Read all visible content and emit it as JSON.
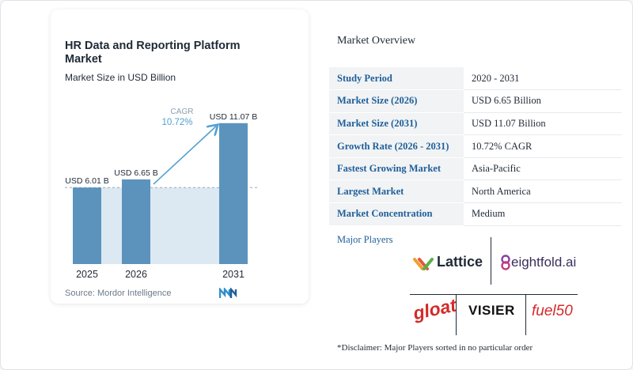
{
  "chart_data": {
    "type": "bar",
    "title": "HR Data and Reporting Platform Market",
    "subtitle": "Market Size in USD Billion",
    "categories": [
      "2025",
      "2026",
      "2031"
    ],
    "values": [
      6.01,
      6.65,
      11.07
    ],
    "value_labels": [
      "USD 6.01 B",
      "USD 6.65 B",
      "USD 11.07 B"
    ],
    "cagr_label": "CAGR",
    "cagr_value": "10.72%",
    "bar_color": "#5b93bd",
    "highlight_color": "#dce8f2",
    "cagr_color": "#4f9fd1"
  },
  "source": "Source: Mordor Intelligence",
  "overview": {
    "title": "Market Overview",
    "rows": [
      {
        "key": "Study Period",
        "value": "2020 - 2031"
      },
      {
        "key": "Market Size (2026)",
        "value": "USD 6.65 Billion"
      },
      {
        "key": "Market Size (2031)",
        "value": "USD 11.07 Billion"
      },
      {
        "key": "Growth Rate (2026 - 2031)",
        "value": "10.72% CAGR"
      },
      {
        "key": "Fastest Growing Market",
        "value": "Asia-Pacific"
      },
      {
        "key": "Largest Market",
        "value": "North America"
      },
      {
        "key": "Market Concentration",
        "value": "Medium"
      }
    ]
  },
  "players": {
    "title": "Major Players",
    "logos": [
      "Lattice",
      "eightfold.ai",
      "gloat",
      "VISIER",
      "fuel50"
    ]
  },
  "disclaimer": "*Disclaimer: Major Players sorted in no particular order"
}
